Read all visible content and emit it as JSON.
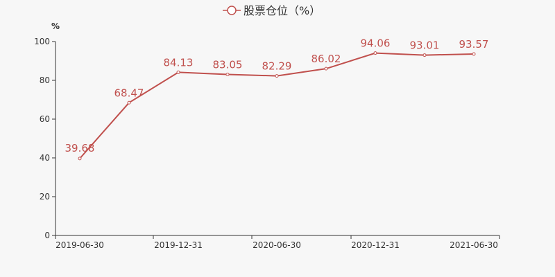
{
  "chart_data": {
    "type": "line",
    "y_unit": "%",
    "ylim": [
      0,
      100
    ],
    "y_ticks": [
      0,
      20,
      40,
      60,
      80,
      100
    ],
    "x": [
      "2019-06-30",
      "2019-09-30",
      "2019-12-31",
      "2020-03-31",
      "2020-06-30",
      "2020-09-30",
      "2020-12-31",
      "2021-03-31",
      "2021-06-30"
    ],
    "x_tick_labels": [
      "2019-06-30",
      "",
      "2019-12-31",
      "",
      "2020-06-30",
      "",
      "2020-12-31",
      "",
      "2021-06-30"
    ],
    "series": [
      {
        "name": "股票仓位（%）",
        "values": [
          39.68,
          68.47,
          84.13,
          83.05,
          82.29,
          86.02,
          94.06,
          93.01,
          93.57
        ],
        "color": "#c0504d"
      }
    ],
    "legend_position": "top-center",
    "grid": false
  }
}
